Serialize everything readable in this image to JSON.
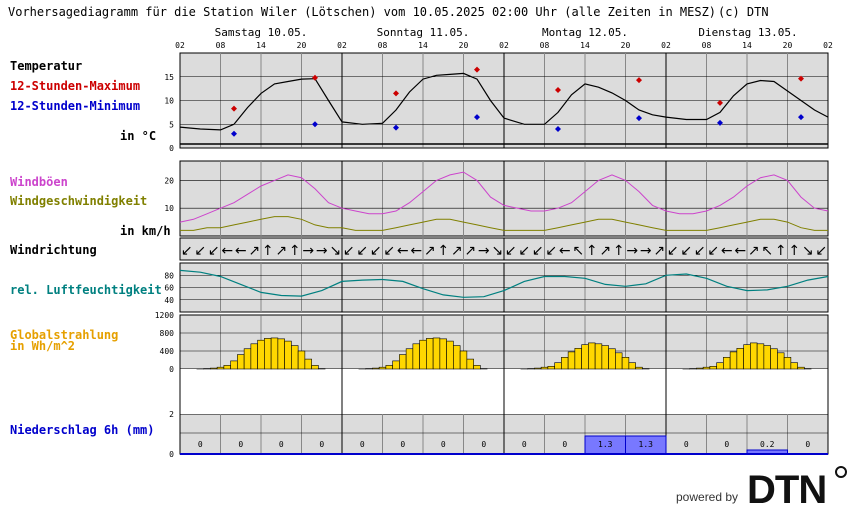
{
  "header": {
    "title": "Vorhersagediagramm für die Station Wiler (Lötschen) vom 10.05.2025 02:00 Uhr (alle Zeiten in MESZ)",
    "copyright": "(c) DTN"
  },
  "days": [
    "Samstag 10.05.",
    "Sonntag 11.05.",
    "Montag 12.05.",
    "Dienstag 13.05."
  ],
  "hour_ticks": [
    "02",
    "08",
    "14",
    "20",
    "02",
    "08",
    "14",
    "20",
    "02",
    "08",
    "14",
    "20",
    "02",
    "08",
    "14",
    "20",
    "02"
  ],
  "labels": {
    "temperatur": "Temperatur",
    "max": "12-Stunden-Maximum",
    "min": "12-Stunden-Minimum",
    "temp_unit": "in °C",
    "windboen": "Windböen",
    "windgeschw": "Windgeschwindigkeit",
    "wind_unit": "in km/h",
    "windrichtung": "Windrichtung",
    "feuchte": "rel. Luftfeuchtigkeit",
    "strahlung_line1": "Globalstrahlung",
    "strahlung_line2": "in Wh/m^2",
    "niederschlag": "Niederschlag 6h (mm)"
  },
  "footer": {
    "powered_by": "powered by",
    "brand": "DTN"
  },
  "colors": {
    "temp_line": "#000000",
    "max_marker": "#cc0000",
    "min_marker": "#0000cc",
    "gust": "#cc44cc",
    "wind": "#808000",
    "humidity": "#008080",
    "radiation": "#ffd700",
    "precip": "#7878ff",
    "panel_bg": "#dcdcdc",
    "max_label": "#cc0000",
    "min_label": "#0000cc",
    "gust_label": "#cc44cc",
    "wind_label": "#808000",
    "humidity_label": "#008080",
    "radiation_label": "#e6a000",
    "precip_label": "#0000cc"
  },
  "chart_data": [
    {
      "type": "line",
      "name": "Temperatur",
      "x_hours": [
        0,
        3,
        6,
        8,
        10,
        12,
        14,
        16,
        18,
        20,
        22,
        24,
        27,
        30,
        32,
        34,
        36,
        38,
        40,
        42,
        44,
        46,
        48,
        51,
        54,
        56,
        58,
        60,
        62,
        64,
        66,
        68,
        70,
        72,
        75,
        78,
        80,
        82,
        84,
        86,
        88,
        90,
        92,
        94,
        96
      ],
      "values": [
        4.4,
        4.0,
        3.8,
        5.0,
        8.5,
        11.5,
        13.5,
        14.0,
        14.5,
        14.6,
        10.0,
        5.5,
        5.0,
        5.2,
        8.0,
        11.8,
        14.5,
        15.3,
        15.5,
        15.7,
        14.5,
        10.0,
        6.3,
        5.0,
        5.0,
        7.5,
        11.2,
        13.5,
        12.8,
        11.6,
        10.0,
        8.0,
        7.0,
        6.5,
        6.0,
        6.0,
        7.5,
        11.0,
        13.5,
        14.2,
        14.0,
        12.0,
        10.0,
        8.0,
        6.5
      ],
      "max_12h": [
        {
          "h": 8,
          "v": 8.3
        },
        {
          "h": 20,
          "v": 14.8
        },
        {
          "h": 32,
          "v": 11.5
        },
        {
          "h": 44,
          "v": 16.5
        },
        {
          "h": 56,
          "v": 12.2
        },
        {
          "h": 68,
          "v": 14.3
        },
        {
          "h": 80,
          "v": 9.5
        },
        {
          "h": 92,
          "v": 14.6
        }
      ],
      "min_12h": [
        {
          "h": 8,
          "v": 3.0
        },
        {
          "h": 20,
          "v": 5.0
        },
        {
          "h": 32,
          "v": 4.3
        },
        {
          "h": 44,
          "v": 6.5
        },
        {
          "h": 56,
          "v": 4.0
        },
        {
          "h": 68,
          "v": 6.3
        },
        {
          "h": 80,
          "v": 5.3
        },
        {
          "h": 92,
          "v": 6.5
        }
      ],
      "ylim": [
        0,
        20
      ],
      "y_ticks": [
        0,
        5,
        10,
        15
      ]
    },
    {
      "type": "line",
      "name": "Wind",
      "x_hours": [
        0,
        2,
        4,
        6,
        8,
        10,
        12,
        14,
        16,
        18,
        20,
        22,
        24,
        26,
        28,
        30,
        32,
        34,
        36,
        38,
        40,
        42,
        44,
        46,
        48,
        50,
        52,
        54,
        56,
        58,
        60,
        62,
        64,
        66,
        68,
        70,
        72,
        74,
        76,
        78,
        80,
        82,
        84,
        86,
        88,
        90,
        92,
        94,
        96
      ],
      "gusts": [
        5,
        6,
        8,
        10,
        12,
        15,
        18,
        20,
        22,
        21,
        17,
        12,
        10,
        9,
        8,
        8,
        9,
        12,
        16,
        20,
        22,
        23,
        20,
        14,
        11,
        10,
        9,
        9,
        10,
        12,
        16,
        20,
        22,
        20,
        16,
        11,
        9,
        8,
        8,
        9,
        11,
        14,
        18,
        21,
        22,
        20,
        14,
        10,
        9
      ],
      "wind": [
        2,
        2,
        3,
        3,
        4,
        5,
        6,
        7,
        7,
        6,
        4,
        3,
        3,
        2,
        2,
        2,
        3,
        4,
        5,
        6,
        6,
        5,
        4,
        3,
        2,
        2,
        2,
        2,
        3,
        4,
        5,
        6,
        6,
        5,
        4,
        3,
        2,
        2,
        2,
        2,
        3,
        4,
        5,
        6,
        6,
        5,
        3,
        2,
        2
      ],
      "ylim": [
        0,
        27
      ],
      "y_ticks": [
        10,
        20
      ]
    },
    {
      "type": "line",
      "name": "rel. Luftfeuchtigkeit",
      "x_hours": [
        0,
        3,
        6,
        9,
        12,
        15,
        18,
        21,
        24,
        27,
        30,
        33,
        36,
        39,
        42,
        45,
        48,
        51,
        54,
        57,
        60,
        63,
        66,
        69,
        72,
        75,
        78,
        81,
        84,
        87,
        90,
        93,
        96
      ],
      "values": [
        88,
        85,
        78,
        65,
        52,
        47,
        46,
        55,
        70,
        72,
        73,
        70,
        58,
        48,
        44,
        45,
        55,
        70,
        78,
        78,
        75,
        65,
        62,
        66,
        80,
        82,
        75,
        62,
        55,
        56,
        62,
        72,
        78
      ],
      "ylim": [
        20,
        100
      ],
      "y_ticks": [
        40,
        60,
        80
      ]
    },
    {
      "type": "bar",
      "name": "Globalstrahlung",
      "x_hours": [
        3,
        4,
        5,
        6,
        7,
        8,
        9,
        10,
        11,
        12,
        13,
        14,
        15,
        16,
        17,
        18,
        19,
        20,
        21,
        27,
        28,
        29,
        30,
        31,
        32,
        33,
        34,
        35,
        36,
        37,
        38,
        39,
        40,
        41,
        42,
        43,
        44,
        45,
        51,
        52,
        53,
        54,
        55,
        56,
        57,
        58,
        59,
        60,
        61,
        62,
        63,
        64,
        65,
        66,
        67,
        68,
        69,
        75,
        76,
        77,
        78,
        79,
        80,
        81,
        82,
        83,
        84,
        85,
        86,
        87,
        88,
        89,
        90,
        91,
        92,
        93
      ],
      "values": [
        5,
        10,
        20,
        40,
        80,
        180,
        320,
        450,
        560,
        640,
        680,
        690,
        670,
        620,
        520,
        400,
        220,
        80,
        10,
        5,
        10,
        20,
        40,
        80,
        180,
        320,
        450,
        560,
        640,
        680,
        690,
        670,
        620,
        520,
        400,
        220,
        80,
        10,
        5,
        10,
        20,
        40,
        60,
        140,
        260,
        380,
        460,
        540,
        580,
        560,
        520,
        450,
        360,
        260,
        140,
        40,
        10,
        5,
        10,
        20,
        40,
        60,
        140,
        260,
        380,
        460,
        540,
        580,
        560,
        520,
        450,
        360,
        260,
        140,
        40,
        10
      ],
      "ylim": [
        0,
        1200
      ],
      "y_ticks": [
        0,
        400,
        800,
        1200
      ]
    },
    {
      "type": "bar",
      "name": "Niederschlag 6h",
      "periods": [
        "02-08",
        "08-14",
        "14-20",
        "20-02",
        "02-08",
        "08-14",
        "14-20",
        "20-02",
        "02-08",
        "08-14",
        "14-20",
        "20-02",
        "02-08",
        "08-14",
        "14-20",
        "20-02"
      ],
      "values": [
        0,
        0,
        0,
        0,
        0,
        0,
        0,
        0,
        0,
        0,
        1.3,
        1.3,
        0,
        0,
        0.2,
        0
      ],
      "value_labels": [
        "0",
        "0",
        "0",
        "0",
        "0",
        "0",
        "0",
        "0",
        "0",
        "0",
        "1.3",
        "1.3",
        "0",
        "0",
        "0.2",
        "0"
      ],
      "ylim": [
        0,
        2
      ],
      "y_ticks": [
        0,
        2
      ]
    }
  ],
  "wind_direction_arrows": [
    "↙",
    "↙",
    "↙",
    "←",
    "←",
    "↗",
    "↑",
    "↗",
    "↑",
    "→",
    "→",
    "↘",
    "↙",
    "↙",
    "↙",
    "↙",
    "←",
    "←",
    "↗",
    "↑",
    "↗",
    "↗",
    "→",
    "↘",
    "↙",
    "↙",
    "↙",
    "↙",
    "←",
    "↖",
    "↑",
    "↗",
    "↑",
    "→",
    "→",
    "↗",
    "↙",
    "↙",
    "↙",
    "↙",
    "←",
    "←",
    "↗",
    "↖",
    "↑",
    "↑",
    "↘",
    "↙"
  ]
}
